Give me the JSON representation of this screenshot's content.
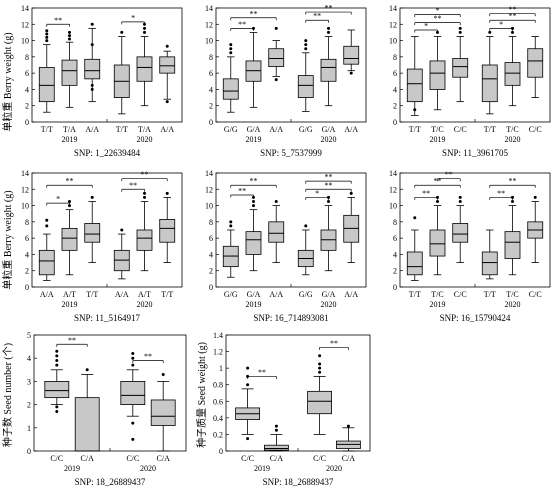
{
  "figure": {
    "y_label_weight": "单粒重 Berry weight (g)",
    "y_label_seed_number": "种子数 Seed number (个)",
    "y_label_seed_weight": "种子质量 Seed weight (g)"
  },
  "colors": {
    "box_fill": "#c8c8c8",
    "stroke": "#000000"
  },
  "chart_data": [
    {
      "type": "box",
      "snp_label": "SNP: 1_22639484",
      "ylim": [
        0,
        14
      ],
      "yticks": [
        0,
        2,
        4,
        6,
        8,
        10,
        12,
        14
      ],
      "years": [
        "2019",
        "2020"
      ],
      "categories": [
        "T/T",
        "T/A",
        "A/A"
      ],
      "groups": [
        [
          {
            "wlo": 1.2,
            "q1": 2.5,
            "med": 4.5,
            "q3": 6.7,
            "whi": 9.5,
            "out": [
              10,
              10.4,
              10.8,
              11.2
            ]
          },
          {
            "wlo": 1.8,
            "q1": 4.5,
            "med": 6.3,
            "q3": 7.6,
            "whi": 9.8,
            "out": [
              10.2,
              10.6,
              11
            ]
          },
          {
            "wlo": 2.5,
            "q1": 5.3,
            "med": 6.3,
            "q3": 7.7,
            "whi": 11.5,
            "out": [
              4.0,
              4.5,
              9.5,
              12
            ]
          }
        ],
        [
          {
            "wlo": 1.0,
            "q1": 3.0,
            "med": 5.0,
            "q3": 7.0,
            "whi": 10.5,
            "out": [
              11
            ]
          },
          {
            "wlo": 2.0,
            "q1": 5.0,
            "med": 6.7,
            "q3": 8.0,
            "whi": 10.5,
            "out": [
              11,
              11.5,
              12
            ]
          },
          {
            "wlo": 2.8,
            "q1": 6.0,
            "med": 6.9,
            "q3": 8.0,
            "whi": 8.7,
            "out": [
              2.5,
              9.3
            ]
          }
        ]
      ],
      "brackets": [
        {
          "year": 0,
          "a": 0,
          "b": 1,
          "y": 12.0,
          "label": "**"
        },
        {
          "year": 1,
          "a": 0,
          "b": 1,
          "y": 12.3,
          "label": "*"
        }
      ]
    },
    {
      "type": "box",
      "snp_label": "SNP: 5_7537999",
      "ylim": [
        0,
        14
      ],
      "yticks": [
        0,
        2,
        4,
        6,
        8,
        10,
        12,
        14
      ],
      "years": [
        "2019",
        "2020"
      ],
      "categories": [
        "G/G",
        "G/A",
        "A/A"
      ],
      "groups": [
        [
          {
            "wlo": 1.2,
            "q1": 2.8,
            "med": 3.8,
            "q3": 5.3,
            "whi": 8.0,
            "out": [
              8.5,
              9,
              9.5
            ]
          },
          {
            "wlo": 1.8,
            "q1": 5.0,
            "med": 6.3,
            "q3": 7.5,
            "whi": 11.0,
            "out": [
              11.5
            ]
          },
          {
            "wlo": 5.6,
            "q1": 6.8,
            "med": 7.8,
            "q3": 9.0,
            "whi": 10.0,
            "out": [
              5.2,
              11.5
            ]
          }
        ],
        [
          {
            "wlo": 1.3,
            "q1": 3.0,
            "med": 4.5,
            "q3": 5.7,
            "whi": 8.5,
            "out": [
              9,
              9.5,
              10
            ]
          },
          {
            "wlo": 2.0,
            "q1": 5.0,
            "med": 6.7,
            "q3": 7.7,
            "whi": 10.5,
            "out": [
              11,
              11.5
            ]
          },
          {
            "wlo": 6.3,
            "q1": 7.1,
            "med": 7.8,
            "q3": 9.3,
            "whi": 11.3,
            "out": [
              6.0
            ]
          }
        ]
      ],
      "brackets": [
        {
          "year": 0,
          "a": 0,
          "b": 1,
          "y": 11.5,
          "label": "**"
        },
        {
          "year": 0,
          "a": 0,
          "b": 2,
          "y": 12.8,
          "label": "**"
        },
        {
          "year": 1,
          "a": 0,
          "b": 1,
          "y": 12.5,
          "label": "**"
        },
        {
          "year": 1,
          "a": 0,
          "b": 2,
          "y": 13.5,
          "label": "**"
        }
      ]
    },
    {
      "type": "box",
      "snp_label": "SNP: 11_3961705",
      "ylim": [
        0,
        14
      ],
      "yticks": [
        0,
        2,
        4,
        6,
        8,
        10,
        12,
        14
      ],
      "years": [
        "2019",
        "2020"
      ],
      "categories": [
        "T/T",
        "T/C",
        "C/C"
      ],
      "groups": [
        [
          {
            "wlo": 0.8,
            "q1": 2.5,
            "med": 4.7,
            "q3": 6.5,
            "whi": 10.5,
            "out": [
              1.5
            ]
          },
          {
            "wlo": 1.5,
            "q1": 4.0,
            "med": 6.0,
            "q3": 7.5,
            "whi": 10.5,
            "out": [
              11
            ]
          },
          {
            "wlo": 2.5,
            "q1": 5.5,
            "med": 6.8,
            "q3": 7.8,
            "whi": 10.5,
            "out": [
              11,
              11.5
            ]
          }
        ],
        [
          {
            "wlo": 1.0,
            "q1": 2.5,
            "med": 5.3,
            "q3": 7.0,
            "whi": 10.5,
            "out": [
              11
            ]
          },
          {
            "wlo": 2.0,
            "q1": 4.5,
            "med": 6.0,
            "q3": 7.3,
            "whi": 10.5,
            "out": [
              11,
              11.5
            ]
          },
          {
            "wlo": 3.0,
            "q1": 5.5,
            "med": 7.5,
            "q3": 9.0,
            "whi": 10.5,
            "out": []
          }
        ]
      ],
      "brackets": [
        {
          "year": 0,
          "a": 0,
          "b": 1,
          "y": 11.3,
          "label": "*"
        },
        {
          "year": 0,
          "a": 0,
          "b": 2,
          "y": 12.2,
          "label": "**"
        },
        {
          "year": 0,
          "a": 0,
          "b": 2,
          "y": 13.2,
          "label": "*"
        },
        {
          "year": 1,
          "a": 0,
          "b": 1,
          "y": 11.5,
          "label": "*"
        },
        {
          "year": 1,
          "a": 0,
          "b": 2,
          "y": 12.5,
          "label": "**"
        },
        {
          "year": 1,
          "a": 0,
          "b": 2,
          "y": 13.3,
          "label": "**"
        }
      ]
    },
    {
      "type": "box",
      "snp_label": "SNP: 11_5164917",
      "ylim": [
        0,
        14
      ],
      "yticks": [
        0,
        2,
        4,
        6,
        8,
        10,
        12,
        14
      ],
      "years": [
        "2019",
        "2020"
      ],
      "categories": [
        "A/A",
        "A/T",
        "T/T"
      ],
      "groups": [
        [
          {
            "wlo": 0.8,
            "q1": 1.5,
            "med": 3.2,
            "q3": 4.5,
            "whi": 6.5,
            "out": [
              7.5,
              8.2
            ]
          },
          {
            "wlo": 1.5,
            "q1": 4.5,
            "med": 6.0,
            "q3": 7.2,
            "whi": 9.5,
            "out": [
              10,
              10.5
            ]
          },
          {
            "wlo": 3.0,
            "q1": 5.5,
            "med": 6.5,
            "q3": 7.8,
            "whi": 10.5,
            "out": [
              11
            ]
          }
        ],
        [
          {
            "wlo": 1.0,
            "q1": 2.0,
            "med": 3.3,
            "q3": 4.5,
            "whi": 6.5,
            "out": [
              7
            ]
          },
          {
            "wlo": 2.0,
            "q1": 4.5,
            "med": 6.0,
            "q3": 7.0,
            "whi": 10.5,
            "out": [
              11,
              11.5
            ]
          },
          {
            "wlo": 3.0,
            "q1": 5.5,
            "med": 7.2,
            "q3": 8.3,
            "whi": 11.0,
            "out": [
              11.5
            ]
          }
        ]
      ],
      "brackets": [
        {
          "year": 0,
          "a": 0,
          "b": 1,
          "y": 10.3,
          "label": "*"
        },
        {
          "year": 0,
          "a": 0,
          "b": 2,
          "y": 12.5,
          "label": "**"
        },
        {
          "year": 1,
          "a": 0,
          "b": 1,
          "y": 12.0,
          "label": "**"
        },
        {
          "year": 1,
          "a": 0,
          "b": 2,
          "y": 13.3,
          "label": "**"
        }
      ]
    },
    {
      "type": "box",
      "snp_label": "SNP: 16_714893081",
      "ylim": [
        0,
        14
      ],
      "yticks": [
        0,
        2,
        4,
        6,
        8,
        10,
        12,
        14
      ],
      "years": [
        "2019",
        "2020"
      ],
      "categories": [
        "G/G",
        "G/A",
        "A/A"
      ],
      "groups": [
        [
          {
            "wlo": 1.2,
            "q1": 2.5,
            "med": 3.8,
            "q3": 5.0,
            "whi": 7.0,
            "out": [
              7.5,
              8
            ]
          },
          {
            "wlo": 2.0,
            "q1": 4.0,
            "med": 5.8,
            "q3": 6.8,
            "whi": 9.5,
            "out": [
              10,
              10.5,
              11
            ]
          },
          {
            "wlo": 3.0,
            "q1": 5.5,
            "med": 6.6,
            "q3": 8.0,
            "whi": 10.0,
            "out": [
              10.5
            ]
          }
        ],
        [
          {
            "wlo": 1.5,
            "q1": 2.5,
            "med": 3.5,
            "q3": 4.5,
            "whi": 7.0,
            "out": [
              7.5
            ]
          },
          {
            "wlo": 2.0,
            "q1": 4.5,
            "med": 5.8,
            "q3": 7.0,
            "whi": 10.0,
            "out": [
              10.5,
              11
            ]
          },
          {
            "wlo": 3.0,
            "q1": 5.5,
            "med": 7.2,
            "q3": 8.8,
            "whi": 11.0,
            "out": [
              11.5
            ]
          }
        ]
      ],
      "brackets": [
        {
          "year": 0,
          "a": 0,
          "b": 1,
          "y": 11.3,
          "label": "**"
        },
        {
          "year": 0,
          "a": 0,
          "b": 2,
          "y": 12.5,
          "label": "**"
        },
        {
          "year": 1,
          "a": 0,
          "b": 1,
          "y": 11.0,
          "label": "*"
        },
        {
          "year": 1,
          "a": 0,
          "b": 2,
          "y": 12.0,
          "label": "**"
        },
        {
          "year": 1,
          "a": 0,
          "b": 2,
          "y": 13.0,
          "label": "**"
        }
      ]
    },
    {
      "type": "box",
      "snp_label": "SNP: 16_15790424",
      "ylim": [
        0,
        14
      ],
      "yticks": [
        0,
        2,
        4,
        6,
        8,
        10,
        12,
        14
      ],
      "years": [
        "2019",
        "2020"
      ],
      "categories": [
        "T/T",
        "T/C",
        "C/C"
      ],
      "groups": [
        [
          {
            "wlo": 0.8,
            "q1": 1.5,
            "med": 2.5,
            "q3": 4.3,
            "whi": 7.0,
            "out": [
              8.5
            ]
          },
          {
            "wlo": 1.5,
            "q1": 3.8,
            "med": 5.3,
            "q3": 7.0,
            "whi": 10.0,
            "out": [
              10.5,
              11
            ]
          },
          {
            "wlo": 3.0,
            "q1": 5.5,
            "med": 6.5,
            "q3": 7.8,
            "whi": 10.0,
            "out": [
              10.5,
              11
            ]
          }
        ],
        [
          {
            "wlo": 1.0,
            "q1": 1.5,
            "med": 3.0,
            "q3": 4.3,
            "whi": 7.0,
            "out": []
          },
          {
            "wlo": 1.5,
            "q1": 3.5,
            "med": 5.5,
            "q3": 6.8,
            "whi": 10.0,
            "out": [
              10.5,
              11
            ]
          },
          {
            "wlo": 3.0,
            "q1": 6.0,
            "med": 7.0,
            "q3": 8.0,
            "whi": 10.5,
            "out": [
              11
            ]
          }
        ]
      ],
      "brackets": [
        {
          "year": 0,
          "a": 0,
          "b": 1,
          "y": 11.0,
          "label": "**"
        },
        {
          "year": 0,
          "a": 0,
          "b": 2,
          "y": 12.5,
          "label": "**"
        },
        {
          "year": 0,
          "a": 1,
          "b": 2,
          "y": 13.3,
          "label": "**"
        },
        {
          "year": 1,
          "a": 0,
          "b": 1,
          "y": 11.0,
          "label": "**"
        },
        {
          "year": 1,
          "a": 0,
          "b": 2,
          "y": 12.5,
          "label": "**"
        }
      ]
    },
    {
      "type": "box",
      "snp_label": "SNP: 18_26889437",
      "ylim": [
        0,
        5
      ],
      "yticks": [
        0,
        1,
        2,
        3,
        4,
        5
      ],
      "years": [
        "2019",
        "2020"
      ],
      "categories": [
        "C/C",
        "C/A"
      ],
      "groups": [
        [
          {
            "wlo": 2.0,
            "q1": 2.3,
            "med": 2.6,
            "q3": 3.0,
            "whi": 3.5,
            "out": [
              1.7,
              1.9,
              3.7,
              3.9,
              4.1,
              4.3
            ]
          },
          {
            "wlo": 0.0,
            "q1": 0.0,
            "med": 0.0,
            "q3": 2.3,
            "whi": 3.3,
            "out": [
              3.5
            ]
          }
        ],
        [
          {
            "wlo": 1.5,
            "q1": 2.0,
            "med": 2.4,
            "q3": 3.0,
            "whi": 3.5,
            "out": [
              0.5,
              1.2,
              3.7,
              4.0,
              4.2
            ]
          },
          {
            "wlo": 0.0,
            "q1": 1.1,
            "med": 1.5,
            "q3": 2.2,
            "whi": 3.0,
            "out": [
              3.3
            ]
          }
        ]
      ],
      "brackets": [
        {
          "year": 0,
          "a": 0,
          "b": 1,
          "y": 4.6,
          "label": "**"
        },
        {
          "year": 1,
          "a": 0,
          "b": 1,
          "y": 3.9,
          "label": "**"
        }
      ]
    },
    {
      "type": "box",
      "snp_label": "SNP: 18_26889437",
      "ylim": [
        0,
        1.4
      ],
      "yticks": [
        0,
        0.2,
        0.4,
        0.6,
        0.8,
        1.0,
        1.2,
        1.4
      ],
      "years": [
        "2019",
        "2020"
      ],
      "categories": [
        "C/C",
        "C/A"
      ],
      "groups": [
        [
          {
            "wlo": 0.2,
            "q1": 0.38,
            "med": 0.45,
            "q3": 0.52,
            "whi": 0.75,
            "out": [
              0.8,
              0.9,
              1.0,
              0.15
            ]
          },
          {
            "wlo": 0.0,
            "q1": 0.01,
            "med": 0.03,
            "q3": 0.07,
            "whi": 0.2,
            "out": [
              0.25,
              0.3
            ]
          }
        ],
        [
          {
            "wlo": 0.2,
            "q1": 0.45,
            "med": 0.6,
            "q3": 0.72,
            "whi": 0.9,
            "out": [
              0.95,
              1.0,
              1.05,
              1.15
            ]
          },
          {
            "wlo": 0.0,
            "q1": 0.03,
            "med": 0.08,
            "q3": 0.12,
            "whi": 0.28,
            "out": [
              0.3
            ]
          }
        ]
      ],
      "brackets": [
        {
          "year": 0,
          "a": 0,
          "b": 1,
          "y": 0.9,
          "label": "**"
        },
        {
          "year": 1,
          "a": 0,
          "b": 1,
          "y": 1.25,
          "label": "**"
        }
      ]
    }
  ]
}
